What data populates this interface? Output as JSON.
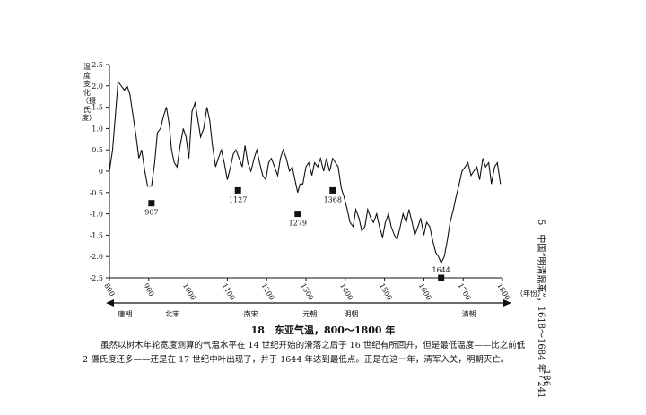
{
  "chart_data": {
    "type": "line",
    "ylabel": "温度变化（摄氏度）",
    "xlabel": "（年份）",
    "ylim": [
      -2.5,
      2.5
    ],
    "xlim": [
      800,
      1800
    ],
    "yticks": [
      "2.5",
      "2.0",
      "1.5",
      "1.0",
      "0.5",
      "0",
      "-0.5",
      "-1.0",
      "-1.5",
      "-2.0",
      "-2.5"
    ],
    "yticks_values": [
      2.5,
      2.0,
      1.5,
      1.0,
      0.5,
      0,
      -0.5,
      -1.0,
      -1.5,
      -2.0,
      -2.5
    ],
    "xticks": [
      "800",
      "900",
      "1000",
      "1100",
      "1200",
      "1300",
      "1400",
      "1500",
      "1600",
      "1700",
      "1800"
    ],
    "xticks_values": [
      800,
      900,
      1000,
      1100,
      1200,
      1300,
      1400,
      1500,
      1600,
      1700,
      1800
    ],
    "grid": false,
    "series": [
      {
        "x": [
          800,
          808,
          815,
          822,
          830,
          838,
          845,
          852,
          860,
          868,
          875,
          882,
          890,
          897,
          907,
          915,
          922,
          930,
          938,
          945,
          952,
          958,
          965,
          972,
          980,
          988,
          995,
          1002,
          1010,
          1018,
          1025,
          1032,
          1040,
          1048,
          1055,
          1062,
          1070,
          1077,
          1085,
          1092,
          1100,
          1108,
          1115,
          1122,
          1130,
          1138,
          1145,
          1152,
          1160,
          1168,
          1175,
          1182,
          1190,
          1198,
          1205,
          1212,
          1220,
          1228,
          1235,
          1242,
          1250,
          1258,
          1265,
          1272,
          1279,
          1285,
          1292,
          1300,
          1307,
          1315,
          1322,
          1330,
          1337,
          1345,
          1352,
          1360,
          1368,
          1375,
          1382,
          1390,
          1397,
          1405,
          1412,
          1420,
          1427,
          1435,
          1442,
          1450,
          1457,
          1465,
          1472,
          1480,
          1487,
          1495,
          1502,
          1510,
          1517,
          1525,
          1532,
          1540,
          1547,
          1555,
          1562,
          1570,
          1577,
          1585,
          1592,
          1600,
          1607,
          1615,
          1622,
          1630,
          1637,
          1644,
          1652,
          1660,
          1667,
          1675,
          1682,
          1690,
          1697,
          1705,
          1712,
          1720,
          1727,
          1735,
          1742,
          1750,
          1757,
          1765,
          1772,
          1780,
          1787,
          1795
        ],
        "y": [
          0.0,
          0.5,
          1.3,
          2.1,
          2.0,
          1.9,
          2.0,
          1.8,
          1.3,
          0.8,
          0.3,
          0.5,
          0.0,
          -0.35,
          -0.35,
          0.2,
          0.9,
          1.0,
          1.3,
          1.5,
          1.1,
          0.5,
          0.2,
          0.1,
          0.6,
          1.0,
          0.8,
          0.3,
          1.4,
          1.6,
          1.2,
          0.8,
          1.0,
          1.5,
          1.2,
          0.6,
          0.1,
          0.3,
          0.5,
          0.2,
          -0.2,
          0.1,
          0.4,
          0.5,
          0.3,
          0.1,
          0.6,
          0.2,
          0.0,
          0.3,
          0.5,
          0.2,
          -0.1,
          -0.2,
          0.2,
          0.3,
          0.1,
          -0.1,
          0.3,
          0.5,
          0.3,
          0.0,
          0.1,
          -0.2,
          -0.5,
          -0.3,
          -0.3,
          0.1,
          0.2,
          -0.1,
          0.2,
          0.1,
          0.3,
          0.0,
          0.3,
          0.0,
          0.3,
          0.2,
          0.1,
          -0.4,
          -0.6,
          -0.9,
          -1.2,
          -1.3,
          -0.9,
          -1.1,
          -1.4,
          -1.3,
          -0.9,
          -1.1,
          -1.2,
          -1.0,
          -1.3,
          -1.55,
          -1.2,
          -1.0,
          -1.3,
          -1.5,
          -1.6,
          -1.3,
          -1.0,
          -1.2,
          -0.9,
          -1.2,
          -1.5,
          -1.3,
          -1.1,
          -1.5,
          -1.2,
          -1.3,
          -1.6,
          -1.9,
          -2.0,
          -2.15,
          -2.0,
          -1.6,
          -1.2,
          -0.9,
          -0.6,
          -0.3,
          0.0,
          0.1,
          0.2,
          -0.1,
          0.0,
          0.1,
          -0.2,
          0.3,
          0.1,
          0.2,
          -0.3,
          0.1,
          0.2,
          -0.3
        ]
      }
    ],
    "markers": [
      {
        "year": 907,
        "value": -0.75,
        "label": "907"
      },
      {
        "year": 1127,
        "value": -0.45,
        "label": "1127"
      },
      {
        "year": 1279,
        "value": -1.0,
        "label": "1279"
      },
      {
        "year": 1368,
        "value": -0.45,
        "label": "1368"
      },
      {
        "year": 1644,
        "value": -2.5,
        "label": "1644"
      }
    ],
    "dynasties": [
      {
        "name": "唐朝",
        "start": 800,
        "end": 907,
        "label_x": 840
      },
      {
        "name": "北宋",
        "start": 907,
        "end": 1127,
        "label_x": 960
      },
      {
        "name": "南宋",
        "start": 1127,
        "end": 1279,
        "label_x": 1160
      },
      {
        "name": "元朝",
        "start": 1279,
        "end": 1368,
        "label_x": 1310
      },
      {
        "name": "明朝",
        "start": 1368,
        "end": 1644,
        "label_x": 1415
      },
      {
        "name": "清朝",
        "start": 1644,
        "end": 1800,
        "label_x": 1715
      }
    ]
  },
  "ylabel_text": "温度变化（摄氏度）",
  "caption": "18　东亚气温，800～1800 年",
  "body_text": "虽然以树木年轮宽度测算的气温水平在 14 世纪开始的滑落之后于 16 世纪有所回升，但是最低温度——比之前低 2 摄氏度还多——还是在 17 世纪中叶出现了，并于 1644 年达到最低点。正是在这一年，清军入关，明朝灭亡。",
  "running_head": "5　中国“明清鼎革”，1618～1684 年 / 241",
  "page_number": "186"
}
